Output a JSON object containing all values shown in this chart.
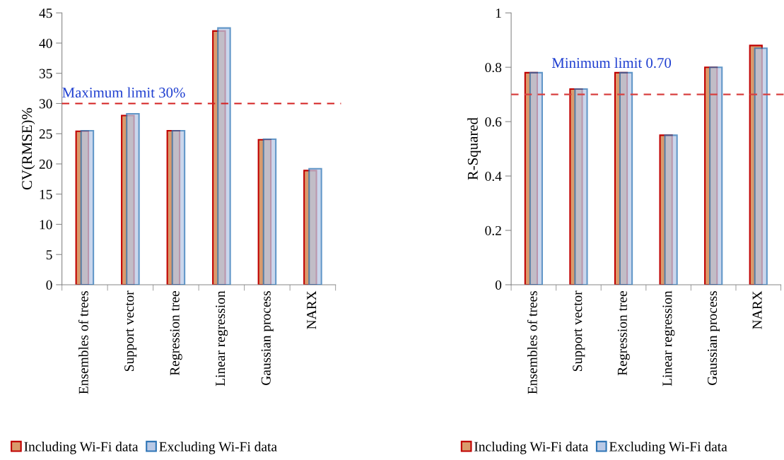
{
  "chart_data": [
    {
      "type": "bar",
      "ylabel": "CV(RMSE)%",
      "categories": [
        "Ensembles of trees",
        "Support vector",
        "Regression tree",
        "Linear regression",
        "Gaussian process",
        "NARX"
      ],
      "series": [
        {
          "name": "Including Wi-Fi data",
          "color": "#d99a6c",
          "values": [
            25.4,
            28.0,
            25.5,
            42.0,
            24.0,
            18.9
          ]
        },
        {
          "name": "Excluding Wi-Fi data",
          "color": "#b9c9e6",
          "values": [
            25.5,
            28.3,
            25.5,
            42.5,
            24.1,
            19.2
          ]
        }
      ],
      "ylim": [
        0,
        45
      ],
      "yticks": [
        0,
        5,
        10,
        15,
        20,
        25,
        30,
        35,
        40,
        45
      ],
      "ref_lines": [
        {
          "axis": "y",
          "value": 30,
          "label": "Maximum limit 30%",
          "color": "#d42020",
          "line_style": "dashed"
        }
      ],
      "grid": false,
      "legend": "bottom"
    },
    {
      "type": "bar",
      "ylabel": "R-Squared",
      "categories": [
        "Ensembles of trees",
        "Support vector",
        "Regression tree",
        "Linear regression",
        "Gaussian process",
        "NARX"
      ],
      "series": [
        {
          "name": "Including Wi-Fi data",
          "color": "#d99a6c",
          "values": [
            0.78,
            0.72,
            0.78,
            0.55,
            0.8,
            0.88
          ]
        },
        {
          "name": "Excluding Wi-Fi data",
          "color": "#b9c9e6",
          "values": [
            0.78,
            0.72,
            0.78,
            0.55,
            0.8,
            0.87
          ]
        }
      ],
      "ylim": [
        0,
        1
      ],
      "yticks": [
        0,
        0.2,
        0.4,
        0.6,
        0.8,
        1
      ],
      "ref_lines": [
        {
          "axis": "y",
          "value": 0.7,
          "label": "Minimum limit 0.70",
          "color": "#d84040",
          "line_style": "dashed"
        }
      ],
      "grid": false,
      "legend": "bottom"
    }
  ]
}
